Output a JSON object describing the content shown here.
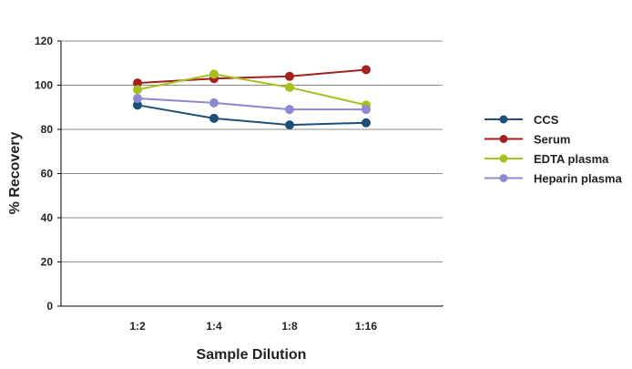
{
  "chart_data": {
    "type": "line",
    "title": "",
    "xlabel": "Sample Dilution",
    "ylabel": "% Recovery",
    "categories": [
      "1:2",
      "1:4",
      "1:8",
      "1:16"
    ],
    "ylim": [
      0,
      120
    ],
    "yticks": [
      0,
      20,
      40,
      60,
      80,
      100,
      120
    ],
    "grid": true,
    "legend_position": "right",
    "series": [
      {
        "name": "CCS",
        "color": "#1f4e79",
        "values": [
          91,
          85,
          82,
          83
        ]
      },
      {
        "name": "Serum",
        "color": "#a3211f",
        "values": [
          101,
          103,
          104,
          107
        ]
      },
      {
        "name": "EDTA plasma",
        "color": "#a9bf1f",
        "values": [
          98,
          105,
          99,
          91
        ]
      },
      {
        "name": "Heparin plasma",
        "color": "#8e8ad1",
        "values": [
          94,
          92,
          89,
          89
        ]
      }
    ]
  }
}
